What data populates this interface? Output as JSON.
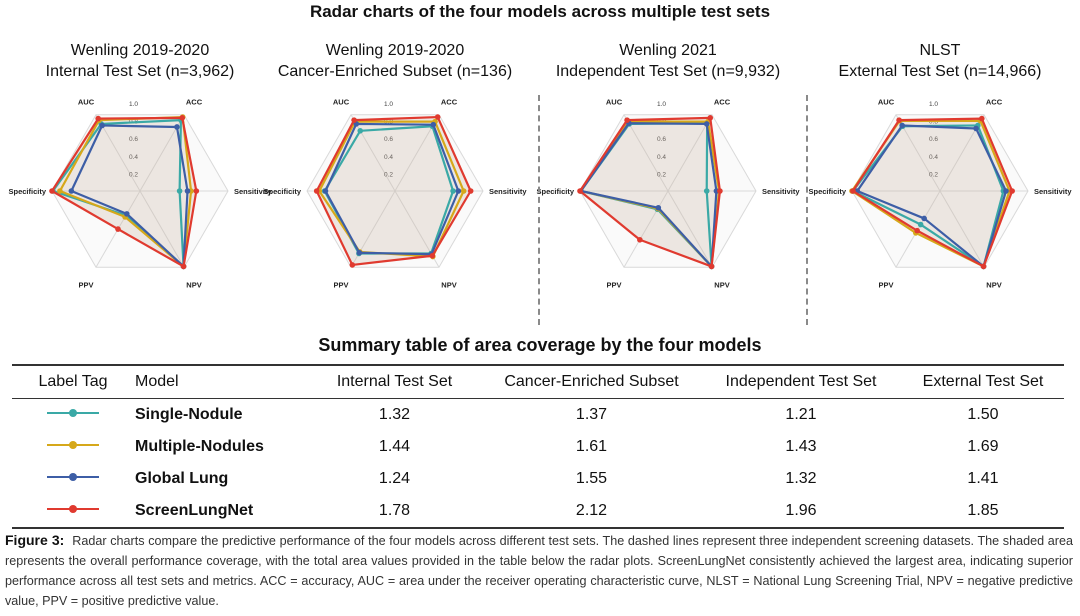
{
  "title": "Radar charts of the four models across multiple test sets",
  "axes": [
    "AUC",
    "ACC",
    "Sensitivity",
    "NPV",
    "PPV",
    "Specificity"
  ],
  "ticks": [
    "0.2",
    "0.4",
    "0.6",
    "0.8",
    "1.0"
  ],
  "colors": {
    "Single-Nodule": "#3aa9a6",
    "Multiple-Nodules": "#d6a81a",
    "Global Lung": "#3d5ea6",
    "ScreenLungNet": "#e03a2f"
  },
  "chart_data": [
    {
      "type": "radar",
      "title_line1": "Wenling 2019-2020",
      "title_line2": "Internal Test Set (n=3,962)",
      "axes": [
        "AUC",
        "ACC",
        "Sensitivity",
        "NPV",
        "PPV",
        "Specificity"
      ],
      "rlim": [
        0,
        1.0
      ],
      "series": [
        {
          "name": "Single-Nodule",
          "values": [
            0.88,
            0.93,
            0.45,
            0.99,
            0.32,
            0.99
          ]
        },
        {
          "name": "Multiple-Nodules",
          "values": [
            0.93,
            0.97,
            0.58,
            0.99,
            0.34,
            0.91
          ]
        },
        {
          "name": "Global Lung",
          "values": [
            0.86,
            0.84,
            0.54,
            0.99,
            0.3,
            0.78
          ]
        },
        {
          "name": "ScreenLungNet",
          "values": [
            0.95,
            0.96,
            0.64,
            0.99,
            0.5,
            1.0
          ]
        }
      ]
    },
    {
      "type": "radar",
      "title_line1": "Wenling 2019-2020",
      "title_line2": "Cancer-Enriched Subset (n=136)",
      "axes": [
        "AUC",
        "ACC",
        "Sensitivity",
        "NPV",
        "PPV",
        "Specificity"
      ],
      "rlim": [
        0,
        1.0
      ],
      "series": [
        {
          "name": "Single-Nodule",
          "values": [
            0.79,
            0.85,
            0.66,
            0.82,
            0.82,
            0.8
          ]
        },
        {
          "name": "Multiple-Nodules",
          "values": [
            0.91,
            0.91,
            0.78,
            0.86,
            0.8,
            0.86
          ]
        },
        {
          "name": "Global Lung",
          "values": [
            0.88,
            0.87,
            0.72,
            0.83,
            0.81,
            0.79
          ]
        },
        {
          "name": "ScreenLungNet",
          "values": [
            0.93,
            0.97,
            0.86,
            0.85,
            0.97,
            0.89
          ]
        }
      ]
    },
    {
      "type": "radar",
      "title_line1": "Wenling 2021",
      "title_line2": "Independent Test Set (n=9,932)",
      "axes": [
        "AUC",
        "ACC",
        "Sensitivity",
        "NPV",
        "PPV",
        "Specificity"
      ],
      "rlim": [
        0,
        1.0
      ],
      "series": [
        {
          "name": "Single-Nodule",
          "values": [
            0.88,
            0.89,
            0.44,
            0.99,
            0.24,
            0.99
          ]
        },
        {
          "name": "Multiple-Nodules",
          "values": [
            0.91,
            0.91,
            0.58,
            0.99,
            0.23,
            0.99
          ]
        },
        {
          "name": "Global Lung",
          "values": [
            0.89,
            0.88,
            0.55,
            0.99,
            0.22,
            0.99
          ]
        },
        {
          "name": "ScreenLungNet",
          "values": [
            0.93,
            0.96,
            0.59,
            0.99,
            0.64,
            1.0
          ]
        }
      ]
    },
    {
      "type": "radar",
      "title_line1": "NLST",
      "title_line2": "External Test Set (n=14,966)",
      "axes": [
        "AUC",
        "ACC",
        "Sensitivity",
        "NPV",
        "PPV",
        "Specificity"
      ],
      "rlim": [
        0,
        1.0
      ],
      "series": [
        {
          "name": "Single-Nodule",
          "values": [
            0.85,
            0.86,
            0.72,
            0.99,
            0.44,
            0.99
          ]
        },
        {
          "name": "Multiple-Nodules",
          "values": [
            0.92,
            0.92,
            0.79,
            0.99,
            0.55,
            1.0
          ]
        },
        {
          "name": "Global Lung",
          "values": [
            0.86,
            0.82,
            0.75,
            0.99,
            0.36,
            0.94
          ]
        },
        {
          "name": "ScreenLungNet",
          "values": [
            0.93,
            0.95,
            0.82,
            0.99,
            0.52,
            0.99
          ]
        }
      ]
    },
    {
      "type": "table",
      "title": "Summary table of area coverage by the four models",
      "columns": [
        "Label Tag",
        "Model",
        "Internal Test Set",
        "Cancer-Enriched Subset",
        "Independent Test Set",
        "External Test Set"
      ],
      "rows": [
        {
          "model": "Single-Nodule",
          "values": [
            "1.32",
            "1.37",
            "1.21",
            "1.50"
          ]
        },
        {
          "model": "Multiple-Nodules",
          "values": [
            "1.44",
            "1.61",
            "1.43",
            "1.69"
          ]
        },
        {
          "model": "Global Lung",
          "values": [
            "1.24",
            "1.55",
            "1.32",
            "1.41"
          ]
        },
        {
          "model": "ScreenLungNet",
          "values": [
            "1.78",
            "2.12",
            "1.96",
            "1.85"
          ]
        }
      ]
    }
  ],
  "caption": {
    "label": "Figure 3:",
    "text": "Radar charts compare the predictive performance of the four models across different test sets. The dashed lines represent three independent screening datasets. The shaded area represents the overall performance coverage, with the total area values provided in the table below the radar plots. ScreenLungNet consistently achieved the largest area, indicating superior performance across all test sets and metrics. ACC = accuracy, AUC = area under the receiver operating characteristic curve, NLST = National Lung Screening Trial, NPV = negative predictive value, PPV = positive predictive value."
  }
}
